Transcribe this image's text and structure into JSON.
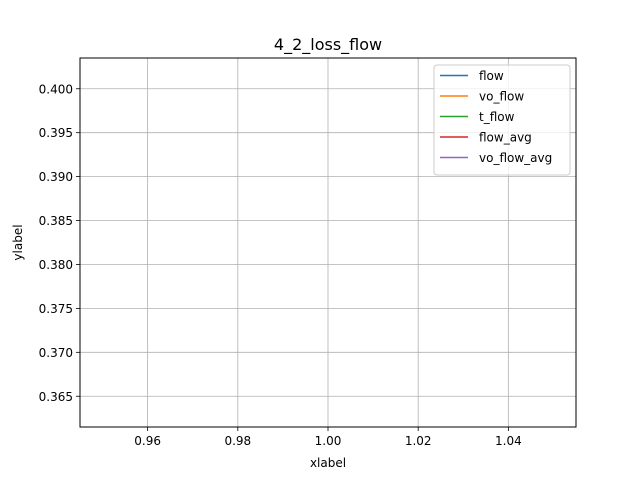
{
  "chart_data": {
    "type": "line",
    "title": "4_2_loss_flow",
    "xlabel": "xlabel",
    "ylabel": "ylabel",
    "xlim": [
      0.945,
      1.055
    ],
    "ylim": [
      0.3615,
      0.4035
    ],
    "xticks": [
      0.96,
      0.98,
      1.0,
      1.02,
      1.04
    ],
    "xtick_labels": [
      "0.96",
      "0.98",
      "1.00",
      "1.02",
      "1.04"
    ],
    "yticks": [
      0.365,
      0.37,
      0.375,
      0.38,
      0.385,
      0.39,
      0.395,
      0.4
    ],
    "ytick_labels": [
      "0.365",
      "0.370",
      "0.375",
      "0.380",
      "0.385",
      "0.390",
      "0.395",
      "0.400"
    ],
    "grid": true,
    "legend_position": "top-right",
    "series": [
      {
        "name": "flow",
        "color": "#1f77b4",
        "x": [],
        "y": []
      },
      {
        "name": "vo_flow",
        "color": "#ff7f0e",
        "x": [],
        "y": []
      },
      {
        "name": "t_flow",
        "color": "#2ca02c",
        "x": [],
        "y": []
      },
      {
        "name": "flow_avg",
        "color": "#d62728",
        "x": [],
        "y": []
      },
      {
        "name": "vo_flow_avg",
        "color": "#9467bd",
        "x": [],
        "y": []
      }
    ]
  }
}
